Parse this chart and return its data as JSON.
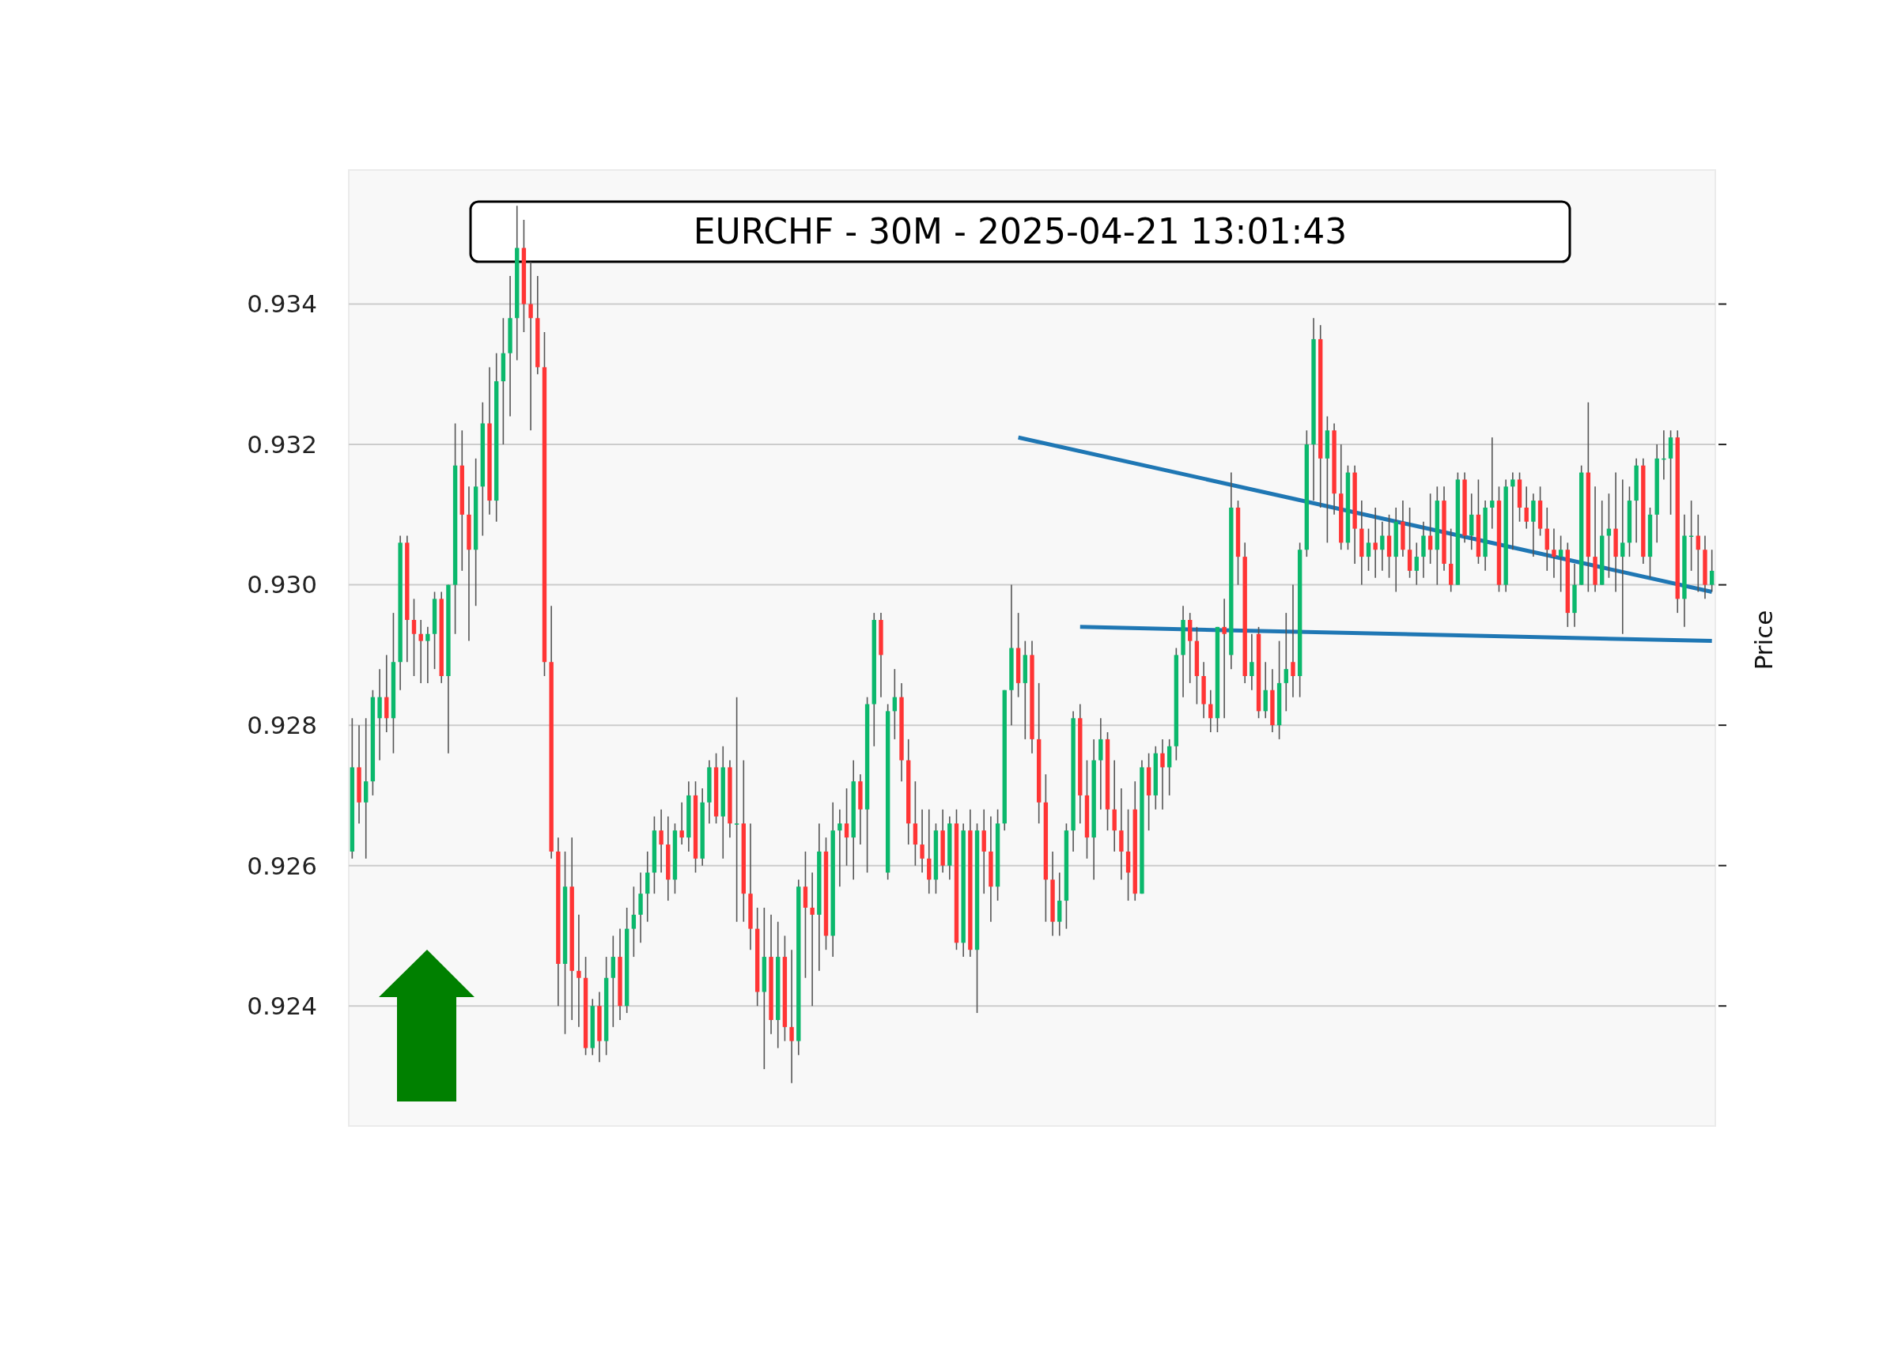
{
  "chart_data": {
    "type": "candlestick",
    "title": "EURCHF - 30M - 2025-04-21 13:01:43",
    "ylabel": "Price",
    "ylim": [
      0.92229,
      0.93591
    ],
    "yticks": [
      {
        "value": 0.924,
        "label": "0.924"
      },
      {
        "value": 0.926,
        "label": "0.926"
      },
      {
        "value": 0.928,
        "label": "0.928"
      },
      {
        "value": 0.93,
        "label": "0.930"
      },
      {
        "value": 0.932,
        "label": "0.932"
      },
      {
        "value": 0.934,
        "label": "0.934"
      }
    ],
    "tick_labels": "y",
    "grid": "y",
    "categories": [
      null,
      null,
      null,
      null,
      null,
      null,
      null,
      null,
      null,
      null,
      null,
      null,
      null,
      null,
      null,
      null,
      null,
      null,
      null,
      null,
      null,
      null,
      null,
      null,
      null,
      null,
      null,
      null,
      null,
      null,
      null,
      null,
      null,
      null,
      null,
      null,
      null,
      null,
      null,
      null,
      null,
      null,
      null,
      null,
      null,
      null,
      null,
      null,
      null,
      null,
      null,
      null,
      null,
      null,
      null,
      null,
      null,
      null,
      null,
      null,
      null,
      null,
      null,
      null,
      null,
      null,
      null,
      null,
      null,
      null,
      null,
      null,
      null,
      null,
      null,
      null,
      null,
      null,
      null,
      null,
      null,
      null,
      null,
      null,
      null,
      null,
      null,
      null,
      null,
      null,
      null,
      null,
      null,
      null,
      null,
      null,
      null,
      null,
      null,
      null,
      null,
      null,
      null,
      null,
      null,
      null,
      null,
      null,
      null,
      null,
      null,
      null,
      null,
      null,
      null,
      null,
      null,
      null,
      null,
      null,
      null,
      null,
      null,
      null,
      null,
      null,
      null,
      null,
      null,
      null,
      null,
      null,
      null,
      null,
      null,
      null,
      null,
      null,
      null,
      null,
      null,
      null,
      null,
      null,
      null,
      null,
      null,
      null,
      null,
      null,
      null,
      null,
      null,
      null,
      null,
      null,
      null,
      null,
      null,
      null,
      null,
      null,
      null,
      null,
      null,
      null,
      null,
      null,
      null,
      null,
      null,
      null,
      null,
      null,
      null,
      null,
      null,
      null,
      null,
      null,
      null,
      null,
      null,
      null,
      null,
      null,
      null,
      null,
      null,
      null,
      null,
      null,
      null,
      null,
      null,
      null,
      null,
      null,
      null
    ],
    "ohlc": [
      [
        0.9262,
        0.9281,
        0.9261,
        0.9274
      ],
      [
        0.9274,
        0.928,
        0.9266,
        0.9269
      ],
      [
        0.9269,
        0.9281,
        0.9261,
        0.9272
      ],
      [
        0.9272,
        0.9285,
        0.927,
        0.9284
      ],
      [
        0.9281,
        0.9288,
        0.9275,
        0.9284
      ],
      [
        0.9284,
        0.929,
        0.9279,
        0.9281
      ],
      [
        0.9281,
        0.9296,
        0.9276,
        0.9289
      ],
      [
        0.9289,
        0.9307,
        0.9285,
        0.9306
      ],
      [
        0.9306,
        0.9307,
        0.9289,
        0.9295
      ],
      [
        0.9295,
        0.9298,
        0.9287,
        0.9293
      ],
      [
        0.9293,
        0.9295,
        0.9286,
        0.9292
      ],
      [
        0.9292,
        0.9294,
        0.9286,
        0.9293
      ],
      [
        0.9293,
        0.9299,
        0.9288,
        0.9298
      ],
      [
        0.9298,
        0.9299,
        0.9286,
        0.9287
      ],
      [
        0.9287,
        0.93,
        0.9276,
        0.93
      ],
      [
        0.93,
        0.9323,
        0.9293,
        0.9317
      ],
      [
        0.9317,
        0.9322,
        0.9302,
        0.931
      ],
      [
        0.931,
        0.9314,
        0.9292,
        0.9305
      ],
      [
        0.9305,
        0.9318,
        0.9297,
        0.9314
      ],
      [
        0.9314,
        0.9326,
        0.9307,
        0.9323
      ],
      [
        0.9323,
        0.9331,
        0.931,
        0.9312
      ],
      [
        0.9312,
        0.9333,
        0.9309,
        0.9329
      ],
      [
        0.9329,
        0.9338,
        0.932,
        0.9333
      ],
      [
        0.9333,
        0.9344,
        0.9324,
        0.9338
      ],
      [
        0.9338,
        0.9354,
        0.9332,
        0.9348
      ],
      [
        0.9348,
        0.9352,
        0.9336,
        0.934
      ],
      [
        0.934,
        0.9346,
        0.9322,
        0.9338
      ],
      [
        0.9338,
        0.9344,
        0.933,
        0.9331
      ],
      [
        0.9331,
        0.9336,
        0.9287,
        0.9289
      ],
      [
        0.9289,
        0.9297,
        0.9261,
        0.9262
      ],
      [
        0.9262,
        0.9264,
        0.924,
        0.9246
      ],
      [
        0.9246,
        0.9262,
        0.9236,
        0.9257
      ],
      [
        0.9257,
        0.9264,
        0.9238,
        0.9245
      ],
      [
        0.9245,
        0.9253,
        0.9237,
        0.9244
      ],
      [
        0.9244,
        0.9247,
        0.9233,
        0.9234
      ],
      [
        0.9234,
        0.9241,
        0.9233,
        0.924
      ],
      [
        0.924,
        0.9242,
        0.9232,
        0.9235
      ],
      [
        0.9235,
        0.9247,
        0.9233,
        0.9244
      ],
      [
        0.9244,
        0.925,
        0.9237,
        0.9247
      ],
      [
        0.9247,
        0.9251,
        0.9238,
        0.924
      ],
      [
        0.924,
        0.9254,
        0.9239,
        0.9251
      ],
      [
        0.9251,
        0.9257,
        0.9247,
        0.9253
      ],
      [
        0.9253,
        0.9259,
        0.9249,
        0.9256
      ],
      [
        0.9256,
        0.9262,
        0.9252,
        0.9259
      ],
      [
        0.9259,
        0.9267,
        0.9256,
        0.9265
      ],
      [
        0.9265,
        0.9268,
        0.9259,
        0.9263
      ],
      [
        0.9263,
        0.9267,
        0.9255,
        0.9258
      ],
      [
        0.9258,
        0.9266,
        0.9256,
        0.9265
      ],
      [
        0.9265,
        0.9269,
        0.9263,
        0.9264
      ],
      [
        0.9264,
        0.9272,
        0.9262,
        0.927
      ],
      [
        0.927,
        0.9272,
        0.9259,
        0.9261
      ],
      [
        0.9261,
        0.9271,
        0.926,
        0.9269
      ],
      [
        0.9269,
        0.9275,
        0.9266,
        0.9274
      ],
      [
        0.9274,
        0.9276,
        0.9266,
        0.9267
      ],
      [
        0.9267,
        0.9277,
        0.9261,
        0.9274
      ],
      [
        0.9274,
        0.9275,
        0.9264,
        0.9266
      ],
      [
        0.9266,
        0.9284,
        0.9252,
        0.9266
      ],
      [
        0.9266,
        0.9275,
        0.9252,
        0.9256
      ],
      [
        0.9256,
        0.9266,
        0.9248,
        0.9251
      ],
      [
        0.9251,
        0.9254,
        0.924,
        0.9242
      ],
      [
        0.9242,
        0.9254,
        0.9231,
        0.9247
      ],
      [
        0.9247,
        0.9253,
        0.9236,
        0.9238
      ],
      [
        0.9238,
        0.9252,
        0.9234,
        0.9247
      ],
      [
        0.9247,
        0.925,
        0.9235,
        0.9237
      ],
      [
        0.9237,
        0.9248,
        0.9229,
        0.9235
      ],
      [
        0.9235,
        0.9258,
        0.9233,
        0.9257
      ],
      [
        0.9257,
        0.9262,
        0.9244,
        0.9254
      ],
      [
        0.9254,
        0.9259,
        0.924,
        0.9253
      ],
      [
        0.9253,
        0.9266,
        0.9245,
        0.9262
      ],
      [
        0.9262,
        0.9264,
        0.9248,
        0.925
      ],
      [
        0.925,
        0.9269,
        0.9247,
        0.9265
      ],
      [
        0.9265,
        0.9268,
        0.9257,
        0.9266
      ],
      [
        0.9266,
        0.9271,
        0.926,
        0.9264
      ],
      [
        0.9264,
        0.9275,
        0.9258,
        0.9272
      ],
      [
        0.9272,
        0.9273,
        0.9263,
        0.9268
      ],
      [
        0.9268,
        0.9284,
        0.9259,
        0.9283
      ],
      [
        0.9283,
        0.9296,
        0.9277,
        0.9295
      ],
      [
        0.9295,
        0.9296,
        0.9284,
        0.929
      ],
      [
        0.9259,
        0.9283,
        0.9258,
        0.9282
      ],
      [
        0.9282,
        0.9288,
        0.9278,
        0.9284
      ],
      [
        0.9284,
        0.9286,
        0.9272,
        0.9275
      ],
      [
        0.9275,
        0.9278,
        0.9263,
        0.9266
      ],
      [
        0.9266,
        0.9272,
        0.926,
        0.9263
      ],
      [
        0.9263,
        0.9268,
        0.9259,
        0.9261
      ],
      [
        0.9261,
        0.9268,
        0.9256,
        0.9258
      ],
      [
        0.9258,
        0.9266,
        0.9256,
        0.9265
      ],
      [
        0.9265,
        0.9268,
        0.9259,
        0.926
      ],
      [
        0.926,
        0.9267,
        0.9258,
        0.9266
      ],
      [
        0.9266,
        0.9268,
        0.9248,
        0.9249
      ],
      [
        0.9249,
        0.9266,
        0.9247,
        0.9265
      ],
      [
        0.9265,
        0.9268,
        0.9247,
        0.9248
      ],
      [
        0.9248,
        0.9266,
        0.9239,
        0.9265
      ],
      [
        0.9265,
        0.9268,
        0.9256,
        0.9262
      ],
      [
        0.9262,
        0.9267,
        0.9252,
        0.9257
      ],
      [
        0.9257,
        0.9268,
        0.9255,
        0.9266
      ],
      [
        0.9266,
        0.9285,
        0.9265,
        0.9285
      ],
      [
        0.9285,
        0.93,
        0.928,
        0.9291
      ],
      [
        0.9291,
        0.9296,
        0.9284,
        0.9286
      ],
      [
        0.9286,
        0.9292,
        0.9278,
        0.929
      ],
      [
        0.929,
        0.9292,
        0.9276,
        0.9278
      ],
      [
        0.9278,
        0.9286,
        0.9266,
        0.9269
      ],
      [
        0.9269,
        0.9273,
        0.9252,
        0.9258
      ],
      [
        0.9258,
        0.9262,
        0.925,
        0.9252
      ],
      [
        0.9252,
        0.9259,
        0.925,
        0.9255
      ],
      [
        0.9255,
        0.9266,
        0.9251,
        0.9265
      ],
      [
        0.9265,
        0.9282,
        0.9262,
        0.9281
      ],
      [
        0.9281,
        0.9283,
        0.9266,
        0.927
      ],
      [
        0.927,
        0.9275,
        0.9261,
        0.9264
      ],
      [
        0.9264,
        0.9278,
        0.9258,
        0.9275
      ],
      [
        0.9275,
        0.9281,
        0.9268,
        0.9278
      ],
      [
        0.9278,
        0.9279,
        0.9265,
        0.9268
      ],
      [
        0.9268,
        0.9275,
        0.9262,
        0.9265
      ],
      [
        0.9265,
        0.9271,
        0.9258,
        0.9262
      ],
      [
        0.9262,
        0.9268,
        0.9255,
        0.9259
      ],
      [
        0.9268,
        0.9272,
        0.9255,
        0.9256
      ],
      [
        0.9256,
        0.9275,
        0.9256,
        0.9274
      ],
      [
        0.9274,
        0.9276,
        0.9265,
        0.927
      ],
      [
        0.927,
        0.9277,
        0.9268,
        0.9276
      ],
      [
        0.9276,
        0.9278,
        0.9268,
        0.9274
      ],
      [
        0.9274,
        0.9278,
        0.927,
        0.9277
      ],
      [
        0.9277,
        0.9291,
        0.9275,
        0.929
      ],
      [
        0.929,
        0.9297,
        0.9284,
        0.9295
      ],
      [
        0.9295,
        0.9296,
        0.9286,
        0.9292
      ],
      [
        0.9292,
        0.9294,
        0.9283,
        0.9287
      ],
      [
        0.9287,
        0.9289,
        0.9281,
        0.9283
      ],
      [
        0.9283,
        0.9285,
        0.9279,
        0.9281
      ],
      [
        0.9281,
        0.9294,
        0.9279,
        0.9294
      ],
      [
        0.9294,
        0.9298,
        0.9281,
        0.9293
      ],
      [
        0.929,
        0.9316,
        0.9288,
        0.9311
      ],
      [
        0.9311,
        0.9312,
        0.93,
        0.9304
      ],
      [
        0.9304,
        0.9306,
        0.9286,
        0.9287
      ],
      [
        0.9287,
        0.9293,
        0.9285,
        0.9289
      ],
      [
        0.9293,
        0.9294,
        0.9281,
        0.9282
      ],
      [
        0.9282,
        0.9289,
        0.9281,
        0.9285
      ],
      [
        0.9285,
        0.9288,
        0.9279,
        0.928
      ],
      [
        0.928,
        0.9292,
        0.9278,
        0.9286
      ],
      [
        0.9286,
        0.9296,
        0.9282,
        0.9288
      ],
      [
        0.9289,
        0.93,
        0.9284,
        0.9287
      ],
      [
        0.9287,
        0.9306,
        0.9284,
        0.9305
      ],
      [
        0.9305,
        0.9322,
        0.9304,
        0.932
      ],
      [
        0.932,
        0.9338,
        0.9312,
        0.9335
      ],
      [
        0.9335,
        0.9337,
        0.9311,
        0.9318
      ],
      [
        0.9318,
        0.9324,
        0.9306,
        0.9322
      ],
      [
        0.9322,
        0.9323,
        0.931,
        0.9313
      ],
      [
        0.9313,
        0.932,
        0.9305,
        0.9306
      ],
      [
        0.9306,
        0.9317,
        0.9305,
        0.9316
      ],
      [
        0.9316,
        0.9317,
        0.9303,
        0.9308
      ],
      [
        0.9308,
        0.9312,
        0.93,
        0.9304
      ],
      [
        0.9304,
        0.9308,
        0.9302,
        0.9306
      ],
      [
        0.9306,
        0.9311,
        0.9301,
        0.9305
      ],
      [
        0.9305,
        0.9309,
        0.9302,
        0.9307
      ],
      [
        0.9307,
        0.931,
        0.9301,
        0.9304
      ],
      [
        0.9304,
        0.9311,
        0.9299,
        0.9309
      ],
      [
        0.9309,
        0.9312,
        0.9304,
        0.9305
      ],
      [
        0.9305,
        0.9311,
        0.9301,
        0.9302
      ],
      [
        0.9302,
        0.9306,
        0.93,
        0.9304
      ],
      [
        0.9304,
        0.9309,
        0.9301,
        0.9307
      ],
      [
        0.9307,
        0.9313,
        0.9303,
        0.9305
      ],
      [
        0.9305,
        0.9314,
        0.93,
        0.9312
      ],
      [
        0.9312,
        0.9314,
        0.9302,
        0.9303
      ],
      [
        0.9303,
        0.9308,
        0.9299,
        0.93
      ],
      [
        0.93,
        0.9316,
        0.93,
        0.9315
      ],
      [
        0.9315,
        0.9316,
        0.9306,
        0.9307
      ],
      [
        0.9307,
        0.9313,
        0.9305,
        0.931
      ],
      [
        0.931,
        0.9315,
        0.9303,
        0.9304
      ],
      [
        0.9304,
        0.9312,
        0.9302,
        0.9311
      ],
      [
        0.9311,
        0.9321,
        0.9308,
        0.9312
      ],
      [
        0.9312,
        0.9314,
        0.9299,
        0.93
      ],
      [
        0.93,
        0.9315,
        0.9299,
        0.9314
      ],
      [
        0.9314,
        0.9316,
        0.9305,
        0.9315
      ],
      [
        0.9315,
        0.9316,
        0.9309,
        0.9311
      ],
      [
        0.9311,
        0.9314,
        0.9308,
        0.9309
      ],
      [
        0.9309,
        0.9313,
        0.9304,
        0.9312
      ],
      [
        0.9312,
        0.9314,
        0.9307,
        0.9308
      ],
      [
        0.9308,
        0.9311,
        0.9302,
        0.9305
      ],
      [
        0.9305,
        0.9308,
        0.9301,
        0.9304
      ],
      [
        0.9304,
        0.9307,
        0.9299,
        0.9305
      ],
      [
        0.9305,
        0.9306,
        0.9294,
        0.9296
      ],
      [
        0.9296,
        0.9303,
        0.9294,
        0.93
      ],
      [
        0.93,
        0.9317,
        0.93,
        0.9316
      ],
      [
        0.9316,
        0.9326,
        0.9299,
        0.9304
      ],
      [
        0.9304,
        0.9314,
        0.9299,
        0.93
      ],
      [
        0.93,
        0.9312,
        0.93,
        0.9307
      ],
      [
        0.9307,
        0.9313,
        0.9301,
        0.9308
      ],
      [
        0.9308,
        0.9316,
        0.9299,
        0.9304
      ],
      [
        0.9304,
        0.9315,
        0.9293,
        0.9306
      ],
      [
        0.9306,
        0.9314,
        0.9304,
        0.9312
      ],
      [
        0.9312,
        0.9318,
        0.9306,
        0.9317
      ],
      [
        0.9317,
        0.9318,
        0.9303,
        0.9304
      ],
      [
        0.9304,
        0.9311,
        0.9301,
        0.931
      ],
      [
        0.931,
        0.932,
        0.9306,
        0.9318
      ],
      [
        0.9318,
        0.9322,
        0.9315,
        0.9318
      ],
      [
        0.9318,
        0.9322,
        0.931,
        0.9321
      ],
      [
        0.9321,
        0.9322,
        0.9296,
        0.9298
      ],
      [
        0.9298,
        0.931,
        0.9294,
        0.9307
      ],
      [
        0.9307,
        0.9312,
        0.9302,
        0.9307
      ],
      [
        0.9307,
        0.931,
        0.9299,
        0.9305
      ],
      [
        0.9305,
        0.9307,
        0.9298,
        0.93
      ],
      [
        0.93,
        0.9305,
        0.9299,
        0.9302
      ]
    ],
    "series": [
      {
        "type": "line",
        "color": "#1f77b4",
        "values": [
          null,
          null,
          null,
          null,
          null,
          null,
          null,
          null,
          null,
          null,
          null,
          null,
          null,
          null,
          null,
          null,
          null,
          null,
          null,
          null,
          null,
          null,
          null,
          null,
          null,
          null,
          null,
          null,
          null,
          null,
          null,
          null,
          null,
          null,
          null,
          null,
          null,
          null,
          null,
          null,
          null,
          null,
          null,
          null,
          null,
          null,
          null,
          null,
          null,
          null,
          null,
          null,
          null,
          null,
          null,
          null,
          null,
          null,
          null,
          null,
          null,
          null,
          null,
          null,
          null,
          null,
          null,
          null,
          null,
          null,
          null,
          null,
          null,
          null,
          null,
          null,
          null,
          null,
          null,
          null,
          null,
          null,
          null,
          null,
          null,
          null,
          null,
          null,
          null,
          null,
          null,
          null,
          null,
          null,
          null,
          null,
          null,
          0.9321,
          null,
          null,
          null,
          null,
          null,
          null,
          null,
          null,
          null,
          null,
          null,
          null,
          null,
          null,
          null,
          null,
          null,
          null,
          null,
          null,
          null,
          null,
          null,
          null,
          null,
          null,
          null,
          null,
          null,
          null,
          null,
          null,
          null,
          null,
          null,
          null,
          null,
          null,
          null,
          null,
          null,
          null,
          null,
          null,
          null,
          null,
          null,
          null,
          null,
          null,
          null,
          null,
          null,
          null,
          null,
          null,
          null,
          null,
          null,
          null,
          null,
          null,
          null,
          null,
          null,
          null,
          null,
          null,
          null,
          null,
          null,
          null,
          null,
          null,
          null,
          null,
          null,
          null,
          null,
          null,
          null,
          null,
          null,
          null,
          null,
          null,
          null,
          null,
          null,
          null,
          null,
          null,
          null,
          null,
          null,
          null,
          null,
          null,
          null,
          null,
          0.9299
        ]
      },
      {
        "type": "line",
        "color": "#1f77b4",
        "values": [
          null,
          null,
          null,
          null,
          null,
          null,
          null,
          null,
          null,
          null,
          null,
          null,
          null,
          null,
          null,
          null,
          null,
          null,
          null,
          null,
          null,
          null,
          null,
          null,
          null,
          null,
          null,
          null,
          null,
          null,
          null,
          null,
          null,
          null,
          null,
          null,
          null,
          null,
          null,
          null,
          null,
          null,
          null,
          null,
          null,
          null,
          null,
          null,
          null,
          null,
          null,
          null,
          null,
          null,
          null,
          null,
          null,
          null,
          null,
          null,
          null,
          null,
          null,
          null,
          null,
          null,
          null,
          null,
          null,
          null,
          null,
          null,
          null,
          null,
          null,
          null,
          null,
          null,
          null,
          null,
          null,
          null,
          null,
          null,
          null,
          null,
          null,
          null,
          null,
          null,
          null,
          null,
          null,
          null,
          null,
          null,
          null,
          null,
          null,
          null,
          null,
          null,
          null,
          null,
          null,
          null,
          0.9294,
          null,
          null,
          null,
          null,
          null,
          null,
          null,
          null,
          null,
          null,
          null,
          null,
          null,
          null,
          null,
          null,
          null,
          null,
          null,
          null,
          null,
          null,
          null,
          null,
          null,
          null,
          null,
          null,
          null,
          null,
          null,
          null,
          null,
          null,
          null,
          null,
          null,
          null,
          null,
          null,
          null,
          null,
          null,
          null,
          null,
          null,
          null,
          null,
          null,
          null,
          null,
          null,
          null,
          null,
          null,
          null,
          null,
          null,
          null,
          null,
          null,
          null,
          null,
          null,
          null,
          null,
          null,
          null,
          null,
          null,
          null,
          null,
          null,
          null,
          null,
          null,
          null,
          null,
          null,
          null,
          null,
          null,
          null,
          null,
          null,
          null,
          null,
          null,
          null,
          null,
          null,
          0.9292
        ]
      }
    ]
  }
}
